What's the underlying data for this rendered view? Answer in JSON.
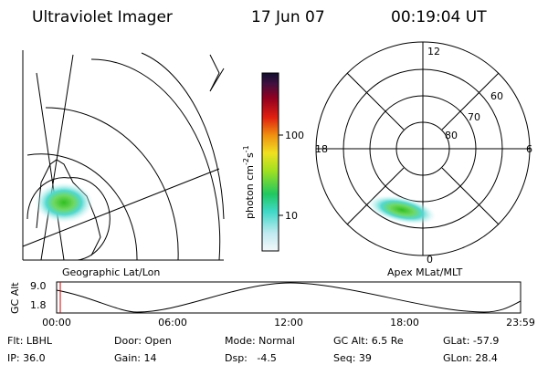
{
  "header": {
    "title": "Ultraviolet Imager",
    "date": "17 Jun 07",
    "time": "00:19:04 UT"
  },
  "map": {
    "caption": "Geographic Lat/Lon"
  },
  "colorbar": {
    "label": {
      "base": "photon cm",
      "exp1": "-2",
      "unit2": "s",
      "exp2": "-1"
    },
    "ticks": [
      "100",
      "10"
    ]
  },
  "polar": {
    "caption": "Apex MLat/MLT",
    "mlt_labels": {
      "top": "12",
      "left": "18",
      "right": "6",
      "bottom": "0"
    },
    "mlat_labels": [
      "60",
      "70",
      "80"
    ]
  },
  "altitude": {
    "axis_label": "GC Alt",
    "yticks": [
      "9.0",
      "1.8"
    ],
    "xticks": [
      "00:00",
      "06:00",
      "12:00",
      "18:00",
      "23:59"
    ]
  },
  "footer": {
    "rows": [
      [
        "Flt: LBHL",
        "Door: Open",
        "Mode: Normal",
        "GC Alt: 6.5 Re",
        "GLat: -57.9"
      ],
      [
        "IP: 36.0",
        "Gain: 14",
        "Dsp:   -4.5",
        "Seq: 39",
        "GLon: 28.4"
      ]
    ]
  }
}
